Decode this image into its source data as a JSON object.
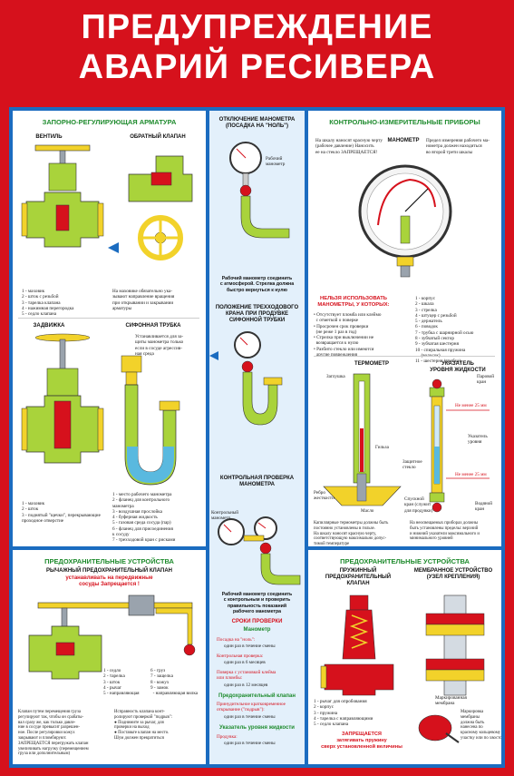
{
  "title": {
    "line1": "ПРЕДУПРЕЖДЕНИЕ",
    "line2": "АВАРИЙ РЕСИВЕРА"
  },
  "armature": {
    "heading": "ЗАПОРНО-РЕГУЛИРУЮЩАЯ АРМАТУРА",
    "ventil_label": "ВЕНТИЛЬ",
    "check_valve_label": "ОБРАТНЫЙ КЛАПАН",
    "ventil_legend": "1 - маховик\n2 - шток с резьбой\n3 - тарелка клапана\n4 - нажимная перегородка\n5 - седло клапана",
    "check_note": "На маховике обязательно ука-\nзывают направление вращения\nпри открывании и закрывании\nарматуры",
    "gate_label": "ЗАДВИЖКА",
    "siphon_label": "СИФОННАЯ ТРУБКА",
    "siphon_note": "Устанавливается для за-\nщиты манометра только\nесли в сосуде агрессив-\nная среда",
    "gate_legend": "1 - маховик\n2 - шток\n3 - поднятый \"щечки\", перекрывающие\nпроходное отверстие",
    "siphon_legend": "1 - место рабочего манометра\n2 - фланец для контрольного\nманометра\n3 - воздушная прослойка\n4 - буферная жидкость\n5 - газовая среда сосуда (пар)\n6 - фланец для присоединения\nк сосуду\n7 - трехходовой кран с рисками"
  },
  "middle": {
    "heading": "ОТКЛЮЧЕНИЕ МАНОМЕТРА\n(ПОСАДКА НА \"НОЛЬ\")",
    "gauge_label": "Рабочий\nманометр",
    "note1": "Рабочий манометр соединить\nс атмосферой. Стрелка должна\nбыстро вернуться к нулю",
    "heading2": "ПОЛОЖЕНИЕ ТРЕХХОДОВОГО\nКРАНА ПРИ ПРОДУВКЕ\nСИФОННОЙ ТРУБКИ",
    "heading3": "КОНТРОЛЬНАЯ ПРОВЕРКА\nМАНОМЕТРА",
    "control_label": "Контрольный\nманометр",
    "note2": "Рабочий манометр соединить\nс контрольным и проверить\nправильность показаний\nрабочего манометра",
    "terms_title": "СРОКИ ПРОВЕРКИ",
    "terms_sub": "Манометр",
    "t1a": "Посадка на \"ноль\":",
    "t1b": "один раз в течение смены",
    "t2a": "Контрольная проверка:",
    "t2b": "один раз в 6 месяцев",
    "t3a": "Поверка с установкой клейма\nили пломбы:",
    "t3b": "один раз в 12 месяцев",
    "t4a": "Предохранительный клапан",
    "t4b": "Принудительное кратковременное\nоткрывание (\"подрыв\"):",
    "t4c": "один раз в течение смены",
    "t5a": "Указатель уровня жидкости",
    "t5b": "Продувка:",
    "t5c": "один раз в течение смены"
  },
  "instruments": {
    "heading": "КОНТРОЛЬНО-ИЗМЕРИТЕЛЬНЫЕ ПРИБОРЫ",
    "manometer_label": "МАНОМЕТР",
    "left_note": "На шкалу наносят красную черту\n(рабочее давление) Наносить\nее на стекло ЗАПРЕЩАЕТСЯ!",
    "right_note": "Предел измерения рабочего ма-\nнометра должен находиться\nво второй трети шкалы",
    "forbid_title": "НЕЛЬЗЯ ИСПОЛЬЗОВАТЬ\nМАНОМЕТРЫ, У КОТОРЫХ:",
    "forbid_list": "• Отсутствует пломба или клеймо\n  с отметкой о поверке\n• Просрочен срок проверки\n  (не реже 1 раз в год)\n• Стрелка при выключении не\n  возвращается к нулю\n• Разбито стекло или имеются\n  другие повреждения",
    "parts_list": "1 - корпус\n2 - шкала\n3 - стрелка\n4 - штуцер с резьбой\n5 - держатель\n6 - поводок\n7 - трубка с шарнирной осью\n8 - зубчатый сектор\n9 - зубчатая шестерня\n10 - спиральная пружина\n     (волосок)\n11 - шестерня (трибка)",
    "thermo_label": "ТЕРМОМЕТР",
    "level_label": "УКАЗАТЕЛЬ\nУРОВНЯ ЖИДКОСТИ",
    "plug": "Заглушка",
    "shield": "Гильза",
    "rib": "Ребро\nжесткости",
    "oil": "Масло",
    "steam": "Паровой\nкран",
    "not_less1": "Не менее 25 мм",
    "not_less2": "Не менее 25 мм",
    "indicator": "Указатель\nуровня",
    "protective": "Защитное\nстекло",
    "water_valve": "Водяной\nкран",
    "drain_valve": "Спускной\nкран (служит\nдля продувки)",
    "thermo_note": "Капиллярные термометры должны быть\nпостоянно установлены в гильзе.\nНа шкалу наносят красную черту,\nсоответствующую максимально допус-\nтимой температуре",
    "level_note": "На неосвещаемых приборах должны\nбыть установлены пределы: верхний\nи нижний указатели максимального и\nминимального уровней"
  },
  "safety_left": {
    "heading": "ПРЕДОХРАНИТЕЛЬНЫЕ УСТРОЙСТВА",
    "sub1": "РЫЧАЖНЫЙ ПРЕДОХРАНИТЕЛЬНЫЙ КЛАПАН",
    "sub2": "устанавливать на передвижные\nсосуды Запрещается !",
    "legend1": "1 - седло\n2 - тарелка\n3 - шток\n4 - рычаг\n5 - направляющая",
    "legend2": "6 - груз\n7 - защелка\n8 - кожух\n9 - замок\n  - направляющая вилка",
    "note_left": "Клапан путем перемещения груза\nрегулируют так, чтобы он срабаты-\nвал сразу же, как только давле-\nние в сосуде превысит разрешен-\nное. После регулировки кожух\nзакрывают и пломбируют.\nЗАПРЕЩАЕТСЯ перегружать клапан\nувеличивать нагрузку (перемещением\nгруза или дополнительным)",
    "note_right": "Исправность клапана конт-\nролируют проверкой \"подрыв\":\n● Поднимите за рычаг, для\nпроверки на выход\n● Поставьте клапан на место.\nШум должен прекратиться"
  },
  "safety_right": {
    "heading": "ПРЕДОХРАНИТЕЛЬНЫЕ УСТРОЙСТВА",
    "spring_title": "ПРУЖИННЫЙ\nПРЕДОХРАНИТЕЛЬНЫЙ\nКЛАПАН",
    "membrane_title": "МЕМБРАННОЕ УСТРОЙСТВО\n(УЗЕЛ КРЕПЛЕНИЯ)",
    "spring_legend": "1 - рычаг для опробования\n2 - корпус\n3 - пружина\n4 - тарелка с направляющими\n5 - седло клапана",
    "forbid": "ЗАПРЕЩАЕТСЯ\nзатягивать пружину\nсверх установленной величины",
    "membrane_label": "Маркированная\nмембрана",
    "marking_note": "Маркировка\nмембраны\nдолжна быть\nнанесена по\nкрасному кольцевому\nучастку или по хвостовику"
  },
  "colors": {
    "poster_red": "#d6111c",
    "frame_blue": "#1b6cc0",
    "heading_green": "#1e8b2d",
    "pipe_green": "#a9d33b",
    "metal_yellow": "#f2d22a"
  }
}
